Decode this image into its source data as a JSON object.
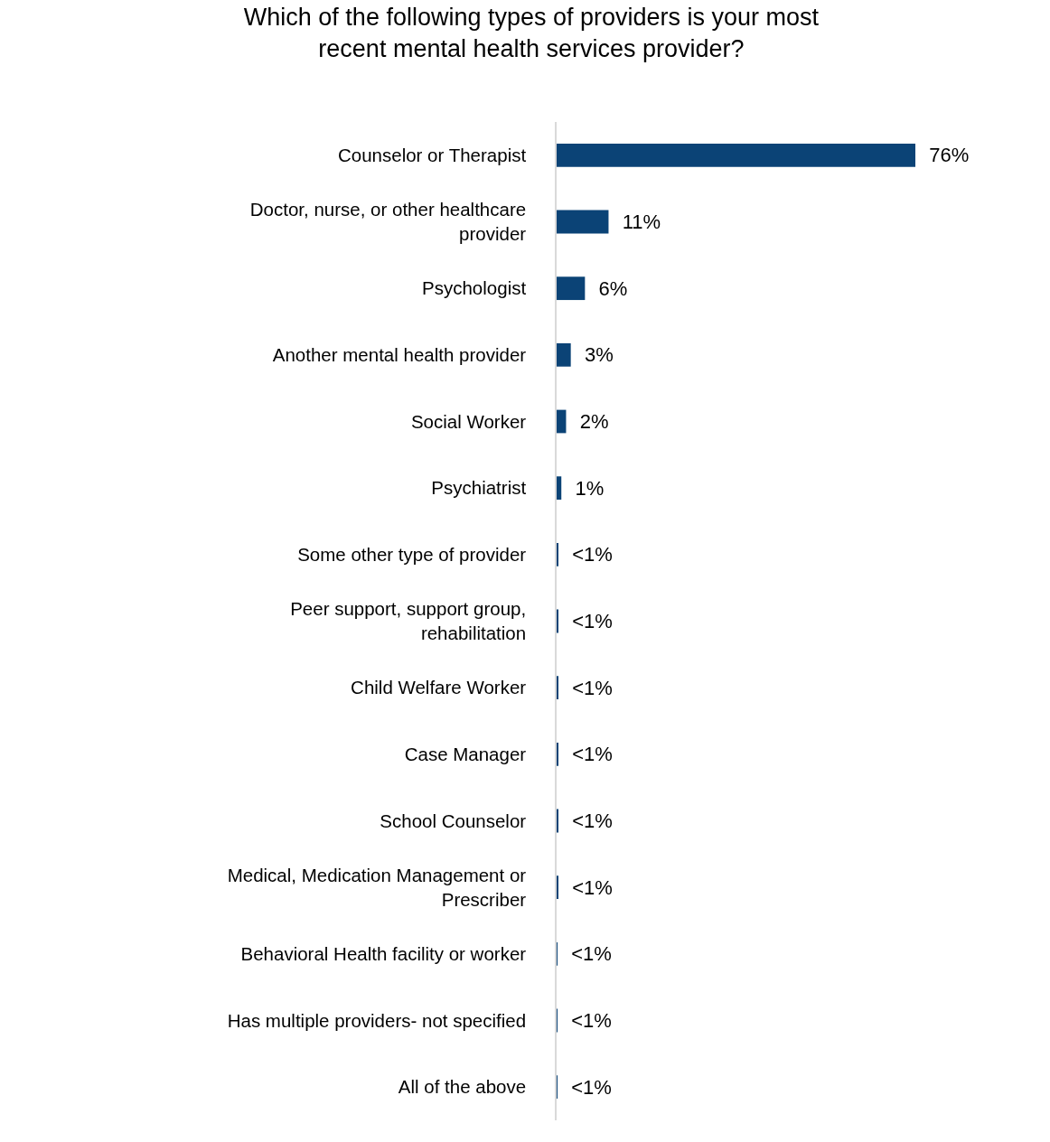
{
  "chart_data": {
    "type": "bar",
    "orientation": "horizontal",
    "title": "Which of the following types of providers is your most\nrecent mental health services provider?",
    "categories": [
      "Counselor or Therapist",
      "Doctor, nurse, or other healthcare\nprovider",
      "Psychologist",
      "Another mental health provider",
      "Social Worker",
      "Psychiatrist",
      "Some other type of provider",
      "Peer support, support group,\nrehabilitation",
      "Child Welfare Worker",
      "Case Manager",
      "School Counselor",
      "Medical, Medication Management or\nPrescriber",
      "Behavioral Health facility or worker",
      "Has multiple providers- not specified",
      "All of the above"
    ],
    "values": [
      76,
      11,
      6,
      3,
      2,
      1,
      0.3,
      0.3,
      0.3,
      0.3,
      0.3,
      0.3,
      0.1,
      0.1,
      0.1
    ],
    "value_labels": [
      "76%",
      "11%",
      "6%",
      "3%",
      "2%",
      "1%",
      "<1%",
      "<1%",
      "<1%",
      "<1%",
      "<1%",
      "<1%",
      "<1%",
      "<1%",
      "<1%"
    ],
    "color": "#0b4376",
    "legend": false
  }
}
